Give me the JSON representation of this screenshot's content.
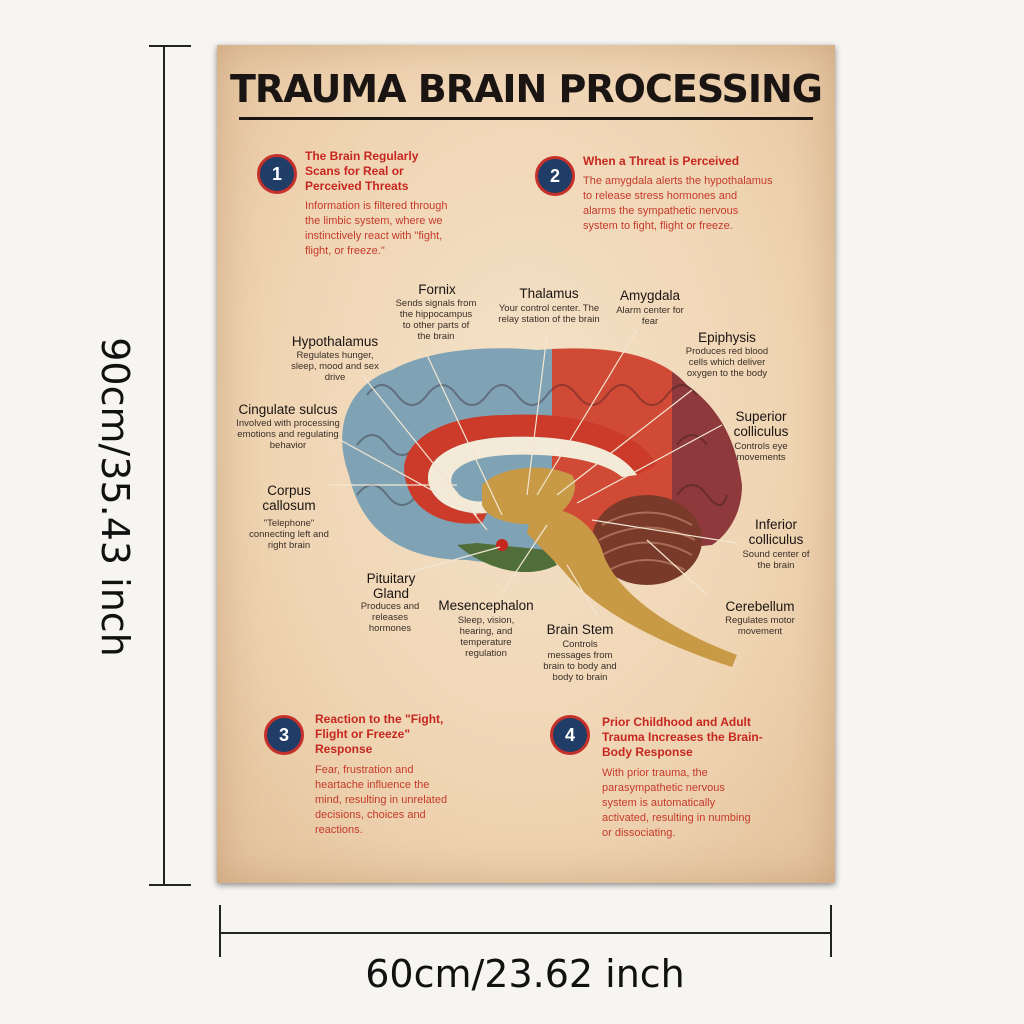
{
  "dimensions": {
    "height_label": "90cm/35.43 inch",
    "width_label": "60cm/23.62 inch"
  },
  "poster": {
    "title": "TRAUMA BRAIN PROCESSING",
    "steps": [
      {
        "number": "1",
        "title": "The Brain Regularly Scans for Real or Perceived Threats",
        "body": "Information is filtered through the limbic system, where we instinctively react with \"fight, flight, or freeze.\""
      },
      {
        "number": "2",
        "title": "When a Threat is Perceived",
        "body": "The amygdala alerts the hypothalamus to release stress hormones and alarms the sympathetic nervous system to fight, flight or freeze."
      },
      {
        "number": "3",
        "title": "Reaction to the \"Fight, Flight or Freeze\" Response",
        "body": "Fear, frustration and heartache influence the mind, resulting in unrelated decisions, choices and reactions."
      },
      {
        "number": "4",
        "title": "Prior Childhood and Adult Trauma Increases the Brain-Body Response",
        "body": "With prior trauma, the parasympathetic nervous system is automatically activated, resulting in numbing or dissociating."
      }
    ],
    "labels": {
      "fornix": {
        "title": "Fornix",
        "desc": "Sends signals from the hippocampus to other parts of the brain"
      },
      "thalamus": {
        "title": "Thalamus",
        "desc": "Your control center. The relay station of the brain"
      },
      "amygdala": {
        "title": "Amygdala",
        "desc": "Alarm center for fear"
      },
      "hypothalamus": {
        "title": "Hypothalamus",
        "desc": "Regulates hunger, sleep, mood and sex drive"
      },
      "epiphysis": {
        "title": "Epiphysis",
        "desc": "Produces red blood cells which deliver oxygen to the body"
      },
      "cingulate": {
        "title": "Cingulate sulcus",
        "desc": "Involved with processing emotions and regulating behavior"
      },
      "superior": {
        "title": "Superior colliculus",
        "desc": "Controls eye movements"
      },
      "corpus": {
        "title": "Corpus callosum",
        "desc": "\"Telephone\" connecting left and right brain"
      },
      "inferior": {
        "title": "Inferior colliculus",
        "desc": "Sound center of the brain"
      },
      "pituitary": {
        "title": "Pituitary Gland",
        "desc": "Produces and releases hormones"
      },
      "mesencephalon": {
        "title": "Mesencephalon",
        "desc": "Sleep, vision, hearing, and temperature regulation"
      },
      "brainstem": {
        "title": "Brain Stem",
        "desc": "Controls messages from brain to body and body to brain"
      },
      "cerebellum": {
        "title": "Cerebellum",
        "desc": "Regulates motor movement"
      }
    },
    "colors": {
      "frontal_lobe": "#7fa3b5",
      "limbic_band": "#cc3a2a",
      "parietal_lobe": "#d04a36",
      "occipital_lobe": "#8e3a3c",
      "cerebellum": "#7a3a2a",
      "brain_stem": "#c99a45",
      "temporal": "#4f6e3a",
      "step_circle": "#1f3d66",
      "step_text": "#c6271f"
    }
  }
}
